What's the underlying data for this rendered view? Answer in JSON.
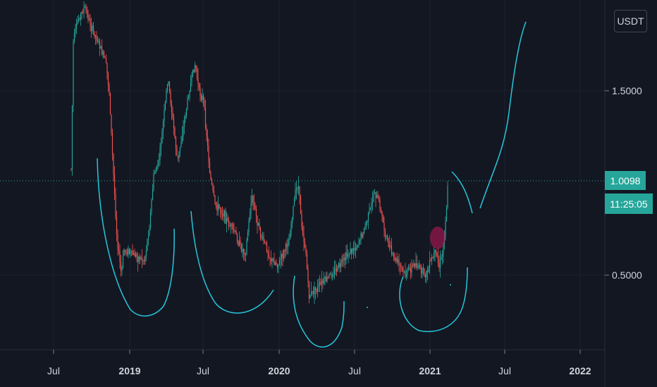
{
  "currency_label": "USDT",
  "price_badge": "1.0098",
  "countdown_badge": "11:25:05",
  "colors": {
    "background": "#131722",
    "up": "#26a69a",
    "down": "#ef5350",
    "drawing": "#26c6da",
    "marker": "#c2185b",
    "badge": "#26a69a",
    "grid": "#1e222d"
  },
  "chart_data": {
    "type": "candlestick",
    "y_axis": {
      "ticks": [
        "1.5000",
        "0.5000"
      ]
    },
    "x_axis": {
      "ticks": [
        {
          "label": "Jul",
          "bold": false
        },
        {
          "label": "2019",
          "bold": true
        },
        {
          "label": "Jul",
          "bold": false
        },
        {
          "label": "2020",
          "bold": true
        },
        {
          "label": "Jul",
          "bold": false
        },
        {
          "label": "2021",
          "bold": true
        },
        {
          "label": "Jul",
          "bold": false
        },
        {
          "label": "2022",
          "bold": true
        }
      ]
    },
    "last_price": 1.0098,
    "grid": true,
    "annotations": [
      "hand-drawn cyan cup arcs",
      "projected upward cyan curve",
      "red circle marker"
    ]
  }
}
